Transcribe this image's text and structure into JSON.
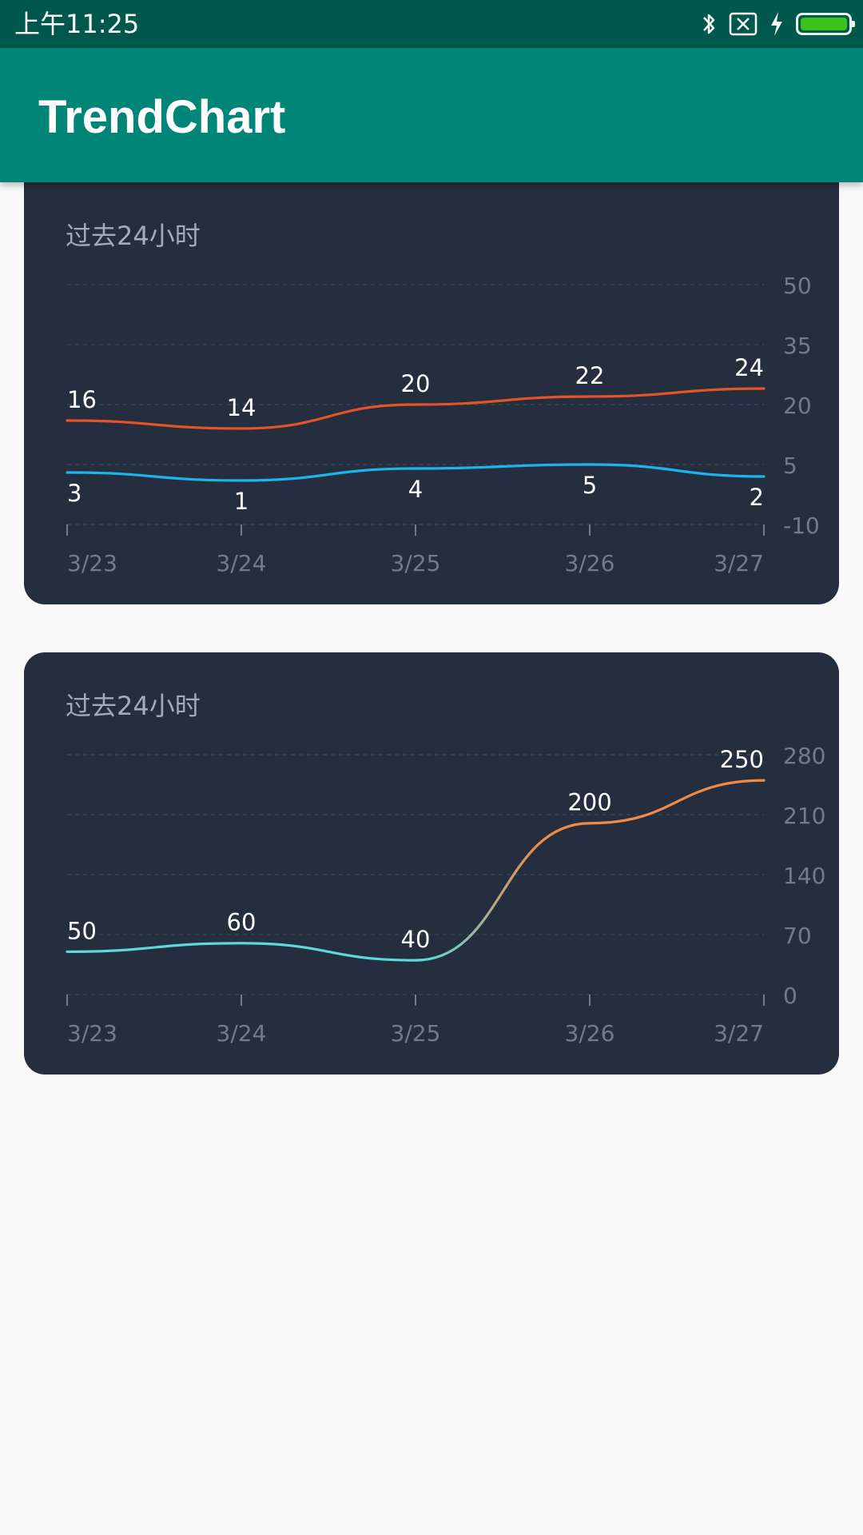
{
  "status_bar": {
    "time": "上午11:25",
    "icons": [
      "bluetooth-icon",
      "sim-error-icon",
      "charging-bolt-icon",
      "battery-icon"
    ],
    "battery_color": "#3cc21c"
  },
  "app_bar": {
    "title": "TrendChart",
    "color": "#008577"
  },
  "cards": [
    {
      "title": "过去24小时"
    },
    {
      "title": "过去24小时"
    }
  ],
  "chart_data": [
    {
      "type": "line",
      "title": "过去24小时",
      "categories": [
        "3/23",
        "3/24",
        "3/25",
        "3/26",
        "3/27"
      ],
      "y_ticks": [
        50,
        35,
        20,
        5,
        -10
      ],
      "ylim": [
        -10,
        50
      ],
      "y_axis_position": "right",
      "grid": true,
      "series": [
        {
          "values": [
            16,
            14,
            20,
            22,
            24
          ],
          "color": "#e5532a",
          "label_position": "above"
        },
        {
          "values": [
            3,
            1,
            4,
            5,
            2
          ],
          "color": "#1ab6ea",
          "label_position": "below"
        }
      ]
    },
    {
      "type": "line",
      "title": "过去24小时",
      "categories": [
        "3/23",
        "3/24",
        "3/25",
        "3/26",
        "3/27"
      ],
      "y_ticks": [
        280,
        210,
        140,
        70,
        0
      ],
      "ylim": [
        0,
        280
      ],
      "y_axis_position": "right",
      "grid": true,
      "series": [
        {
          "values": [
            50,
            60,
            40,
            200,
            250
          ],
          "color_low": "#5fd8d8",
          "color_high": "#f08a46",
          "label_position": "above"
        }
      ]
    }
  ]
}
